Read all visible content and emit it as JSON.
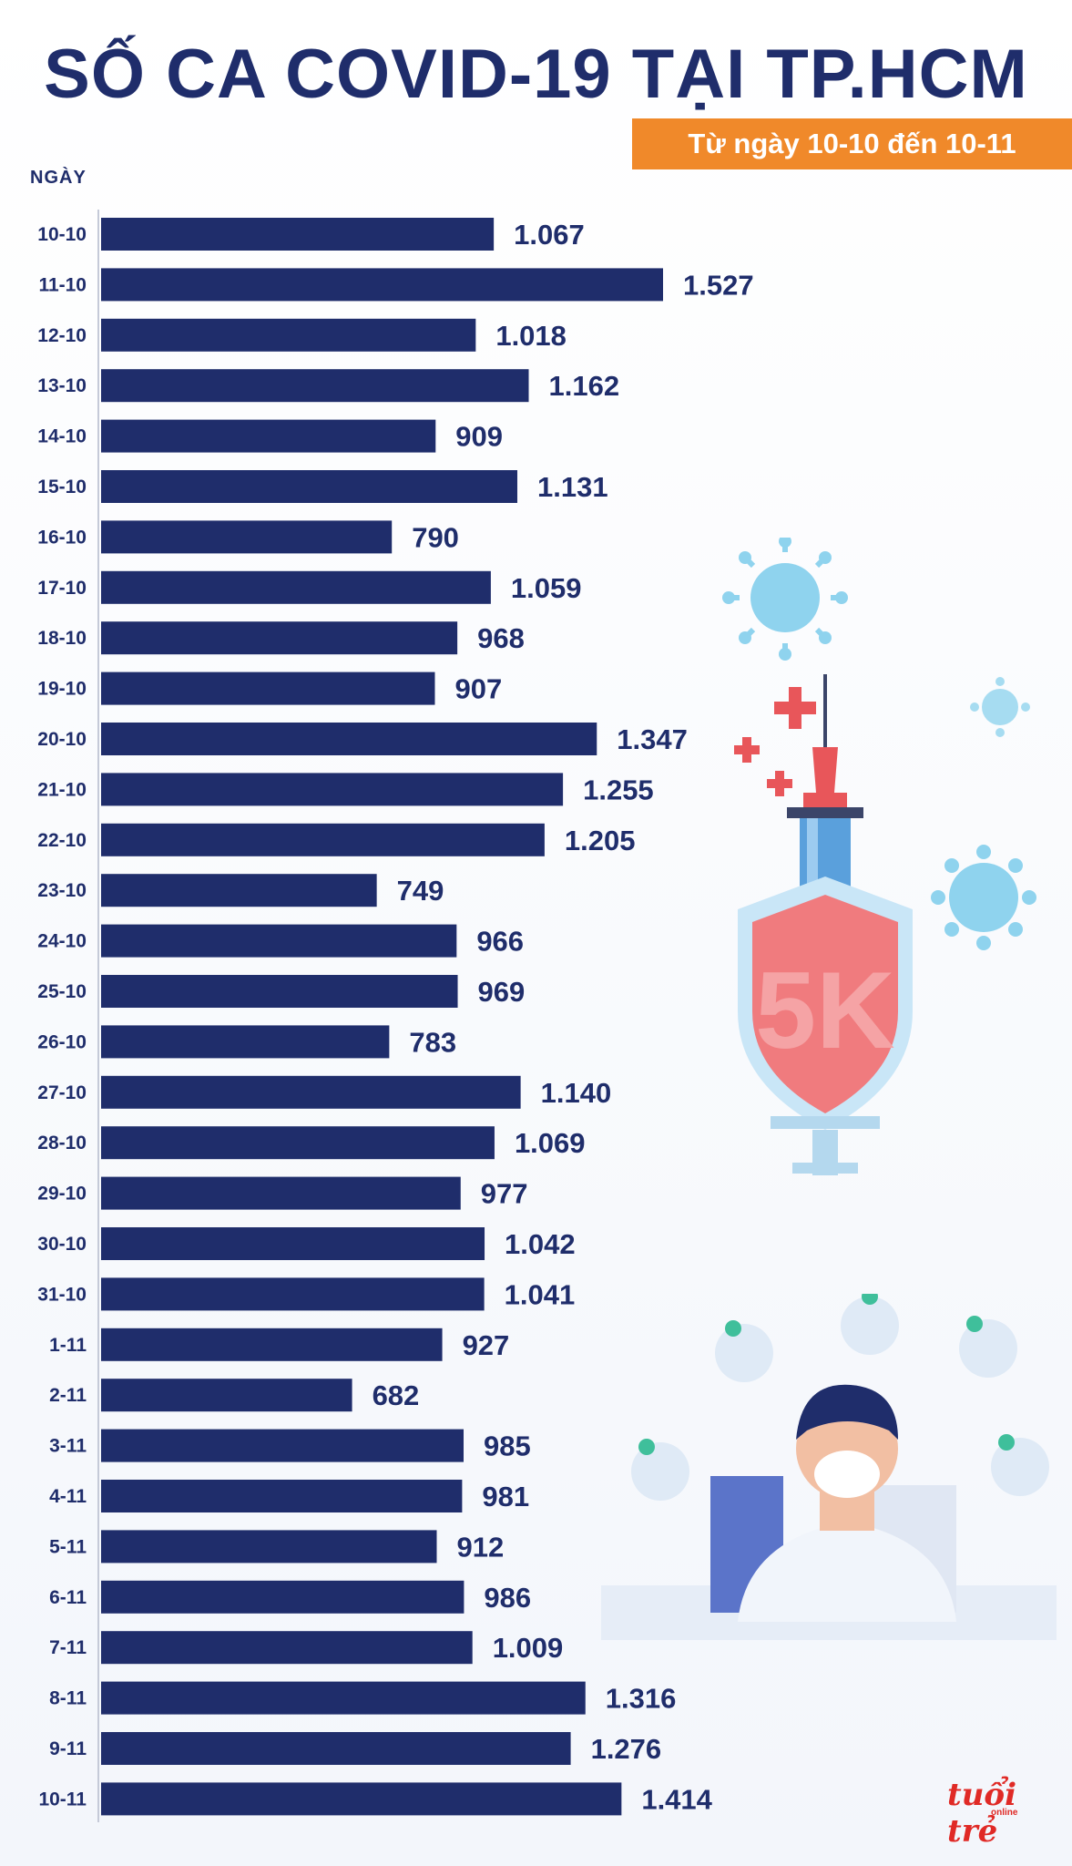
{
  "header": {
    "title": "SỐ CA COVID-19 TẠI TP.HCM",
    "subtitle": "Từ ngày 10-10 đến 10-11"
  },
  "brand": {
    "logo": "tuổi trẻ",
    "logo_sub": "online"
  },
  "chart_data": {
    "type": "bar",
    "orientation": "horizontal",
    "title": "SỐ CA COVID-19 TẠI TP.HCM",
    "ylabel": "NGÀY",
    "xlabel": "",
    "xlim": [
      0,
      1600
    ],
    "grid": false,
    "bar_color": "#1f2d6b",
    "categories": [
      "10-10",
      "11-10",
      "12-10",
      "13-10",
      "14-10",
      "15-10",
      "16-10",
      "17-10",
      "18-10",
      "19-10",
      "20-10",
      "21-10",
      "22-10",
      "23-10",
      "24-10",
      "25-10",
      "26-10",
      "27-10",
      "28-10",
      "29-10",
      "30-10",
      "31-10",
      "1-11",
      "2-11",
      "3-11",
      "4-11",
      "5-11",
      "6-11",
      "7-11",
      "8-11",
      "9-11",
      "10-11"
    ],
    "values": [
      1067,
      1527,
      1018,
      1162,
      909,
      1131,
      790,
      1059,
      968,
      907,
      1347,
      1255,
      1205,
      749,
      966,
      969,
      783,
      1140,
      1069,
      977,
      1042,
      1041,
      927,
      682,
      985,
      981,
      912,
      986,
      1009,
      1316,
      1276,
      1414
    ],
    "value_labels": [
      "1.067",
      "1.527",
      "1.018",
      "1.162",
      "909",
      "1.131",
      "790",
      "1.059",
      "968",
      "907",
      "1.347",
      "1.255",
      "1.205",
      "749",
      "966",
      "969",
      "783",
      "1.140",
      "1.069",
      "977",
      "1.042",
      "1.041",
      "927",
      "682",
      "985",
      "981",
      "912",
      "986",
      "1.009",
      "1.316",
      "1.276",
      "1.414"
    ]
  },
  "illustration": {
    "shield_text": "5K",
    "colors": {
      "virus": "#8fd3ee",
      "cross": "#e8565a",
      "shield": "#f07b7e",
      "syringe": "#5aa0dc"
    }
  }
}
